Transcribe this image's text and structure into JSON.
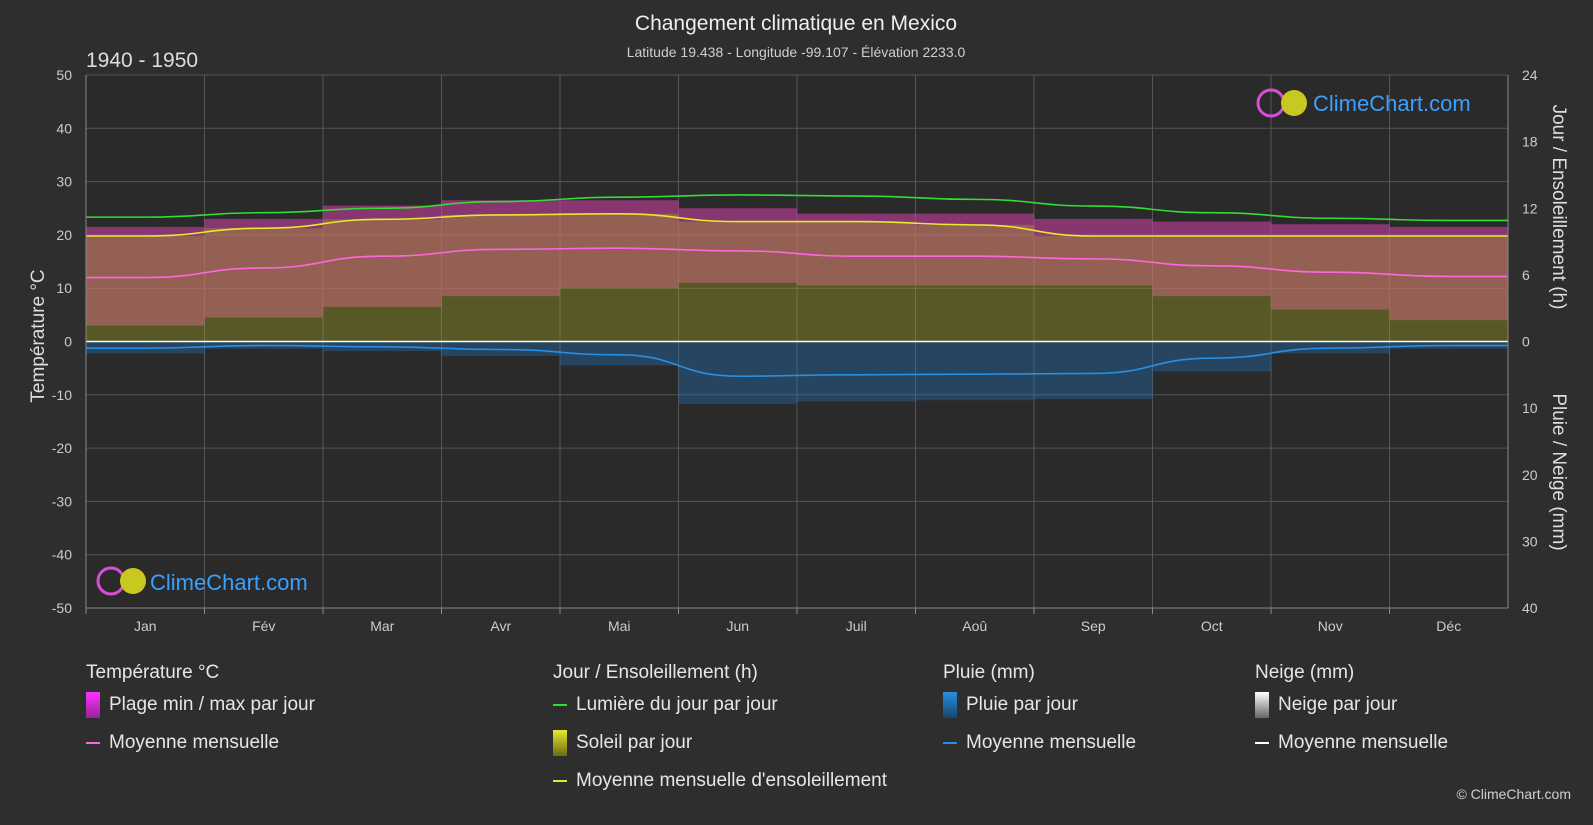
{
  "header": {
    "title": "Changement climatique en Mexico",
    "subtitle": "Latitude 19.438 - Longitude -99.107 - Élévation 2233.0",
    "period": "1940 - 1950"
  },
  "brand": {
    "logo_text": "ClimeChart.com",
    "copyright": "© ClimeChart.com"
  },
  "colors": {
    "background": "#2e2e2e",
    "temp_range": "#d63fa9",
    "temp_mean": "#ff66e0",
    "daylight": "#33dd33",
    "sunshine_fill": "#b0b020",
    "sunshine_mean": "#e8e830",
    "rain": "#1f78c8",
    "rain_mean": "#2a8fe0",
    "snow_mean": "#ffffff",
    "logo_blue": "#3aa0ff"
  },
  "chart_data": {
    "type": "area",
    "categories": [
      "Jan",
      "Fév",
      "Mar",
      "Avr",
      "Mai",
      "Jun",
      "Juil",
      "Aoû",
      "Sep",
      "Oct",
      "Nov",
      "Déc"
    ],
    "y_left": {
      "label": "Température °C",
      "range": [
        -50,
        50
      ],
      "ticks": [
        "50",
        "40",
        "30",
        "20",
        "10",
        "0",
        "-10",
        "-20",
        "-30",
        "-40",
        "-50"
      ]
    },
    "y_right_top": {
      "label": "Jour / Ensoleillement (h)",
      "range": [
        0,
        24
      ],
      "ticks": [
        "24",
        "18",
        "12",
        "6",
        "0"
      ]
    },
    "y_right_bottom": {
      "label": "Pluie / Neige (mm)",
      "range": [
        0,
        40
      ],
      "ticks": [
        "10",
        "20",
        "30",
        "40"
      ]
    },
    "grid": true,
    "series": [
      {
        "name": "Lumière du jour par jour",
        "axis": "hours",
        "values": [
          11.2,
          11.6,
          12.0,
          12.6,
          13.0,
          13.2,
          13.1,
          12.8,
          12.2,
          11.6,
          11.1,
          10.9
        ]
      },
      {
        "name": "Moyenne mensuelle d'ensoleillement",
        "axis": "hours",
        "values": [
          9.5,
          10.2,
          11.0,
          11.4,
          11.5,
          10.8,
          10.8,
          10.5,
          9.5,
          9.5,
          9.5,
          9.5
        ]
      },
      {
        "name": "Moyenne mensuelle",
        "kind": "temp_mean",
        "axis": "temperature",
        "values": [
          12.0,
          13.8,
          16.0,
          17.3,
          17.5,
          17.0,
          16.0,
          16.0,
          15.5,
          14.2,
          13.0,
          12.2
        ]
      },
      {
        "name": "Plage min / max par jour",
        "kind": "temp_range",
        "axis": "temperature",
        "max": [
          21.5,
          23.0,
          25.5,
          26.5,
          26.5,
          25.0,
          24.0,
          24.0,
          23.0,
          22.5,
          22.0,
          21.5
        ],
        "min": [
          3.0,
          4.5,
          6.5,
          8.5,
          10.0,
          11.0,
          10.5,
          10.5,
          10.5,
          8.5,
          6.0,
          4.0
        ]
      },
      {
        "name": "Moyenne mensuelle",
        "kind": "rain_mean",
        "axis": "precip",
        "values": [
          1.0,
          0.6,
          0.8,
          1.2,
          2.0,
          5.2,
          5.0,
          4.9,
          4.8,
          2.5,
          1.0,
          0.6
        ]
      },
      {
        "name": "Moyenne mensuelle",
        "kind": "snow_mean",
        "axis": "precip",
        "values": [
          0,
          0,
          0,
          0,
          0,
          0,
          0,
          0,
          0,
          0,
          0,
          0
        ]
      }
    ]
  },
  "legend": {
    "groups": [
      {
        "title": "Température °C",
        "items": [
          {
            "type": "bar",
            "color": "#d63fa9",
            "label": "Plage min / max par jour"
          },
          {
            "type": "line",
            "color": "#ff66e0",
            "label": "Moyenne mensuelle"
          }
        ]
      },
      {
        "title": "Jour / Ensoleillement (h)",
        "items": [
          {
            "type": "line",
            "color": "#33dd33",
            "label": "Lumière du jour par jour"
          },
          {
            "type": "bar",
            "color": "#c8c820",
            "label": "Soleil par jour"
          },
          {
            "type": "line",
            "color": "#e8e830",
            "label": "Moyenne mensuelle d'ensoleillement"
          }
        ]
      },
      {
        "title": "Pluie (mm)",
        "items": [
          {
            "type": "bar",
            "color": "#1f78c8",
            "label": "Pluie par jour"
          },
          {
            "type": "line",
            "color": "#2a8fe0",
            "label": "Moyenne mensuelle"
          }
        ]
      },
      {
        "title": "Neige (mm)",
        "items": [
          {
            "type": "bar",
            "color": "#dddddd",
            "label": "Neige par jour"
          },
          {
            "type": "line",
            "color": "#ffffff",
            "label": "Moyenne mensuelle"
          }
        ]
      }
    ]
  }
}
